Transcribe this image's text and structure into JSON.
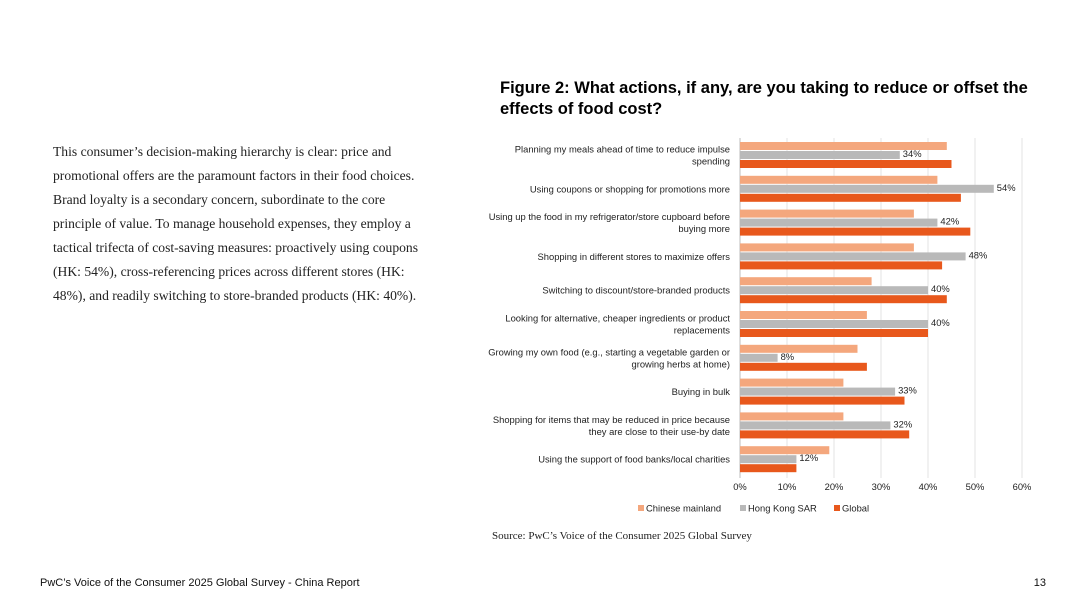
{
  "body_text": "This consumer’s decision-making hierarchy is clear: price and promotional offers are the paramount factors in their food choices. Brand loyalty is a secondary concern, subordinate to the core principle of value.  To manage household expenses, they employ a tactical trifecta of cost-saving measures: proactively using coupons (HK: 54%), cross-referencing prices across different stores (HK: 48%), and readily switching to store-branded products (HK: 40%).",
  "figure_title": "Figure 2: What actions, if any, are you taking to reduce or offset the effects of food cost?",
  "source": "Source: PwC’s Voice of the Consumer 2025 Global Survey",
  "footer": {
    "left": "PwC’s Voice of the Consumer 2025 Global Survey - China Report",
    "page_number": "13"
  },
  "colors": {
    "chinese_mainland": "#F4A77D",
    "hong_kong_sar": "#B9B9B9",
    "global": "#E8581C",
    "grid": "#E3E3E3"
  },
  "chart_data": {
    "type": "bar",
    "orientation": "horizontal",
    "title": "Figure 2: What actions, if any, are you taking to reduce or offset the effects of food cost?",
    "categories": [
      [
        "Planning my meals ahead of time to reduce impulse",
        "spending"
      ],
      [
        "Using coupons or shopping for promotions more"
      ],
      [
        "Using up the food in my refrigerator/store cupboard before",
        "buying more"
      ],
      [
        "Shopping in different stores to maximize offers"
      ],
      [
        "Switching to discount/store-branded products"
      ],
      [
        "Looking for alternative, cheaper ingredients or product",
        "replacements"
      ],
      [
        "Growing my own food (e.g., starting a vegetable garden or",
        "growing herbs at home)"
      ],
      [
        "Buying in bulk"
      ],
      [
        "Shopping for items that may be reduced in price because",
        "they are close to their use-by date"
      ],
      [
        "Using the support of food banks/local charities"
      ]
    ],
    "series": [
      {
        "name": "Chinese mainland",
        "color": "#F4A77D",
        "values": [
          44,
          42,
          37,
          37,
          28,
          27,
          25,
          22,
          22,
          19
        ]
      },
      {
        "name": "Hong Kong SAR",
        "color": "#B9B9B9",
        "values": [
          34,
          54,
          42,
          48,
          40,
          40,
          8,
          33,
          32,
          12
        ]
      },
      {
        "name": "Global",
        "color": "#E8581C",
        "values": [
          45,
          47,
          49,
          43,
          44,
          40,
          27,
          35,
          36,
          12
        ]
      }
    ],
    "data_labels": {
      "series": "Hong Kong SAR",
      "labels": [
        "34%",
        "54%",
        "42%",
        "48%",
        "40%",
        "40%",
        "8%",
        "33%",
        "32%",
        "12%"
      ]
    },
    "x_ticks": [
      0,
      10,
      20,
      30,
      40,
      50,
      60
    ],
    "x_tick_labels": [
      "0%",
      "10%",
      "20%",
      "30%",
      "40%",
      "50%",
      "60%"
    ],
    "xlim": [
      0,
      60
    ],
    "grid": true,
    "legend": "bottom"
  }
}
